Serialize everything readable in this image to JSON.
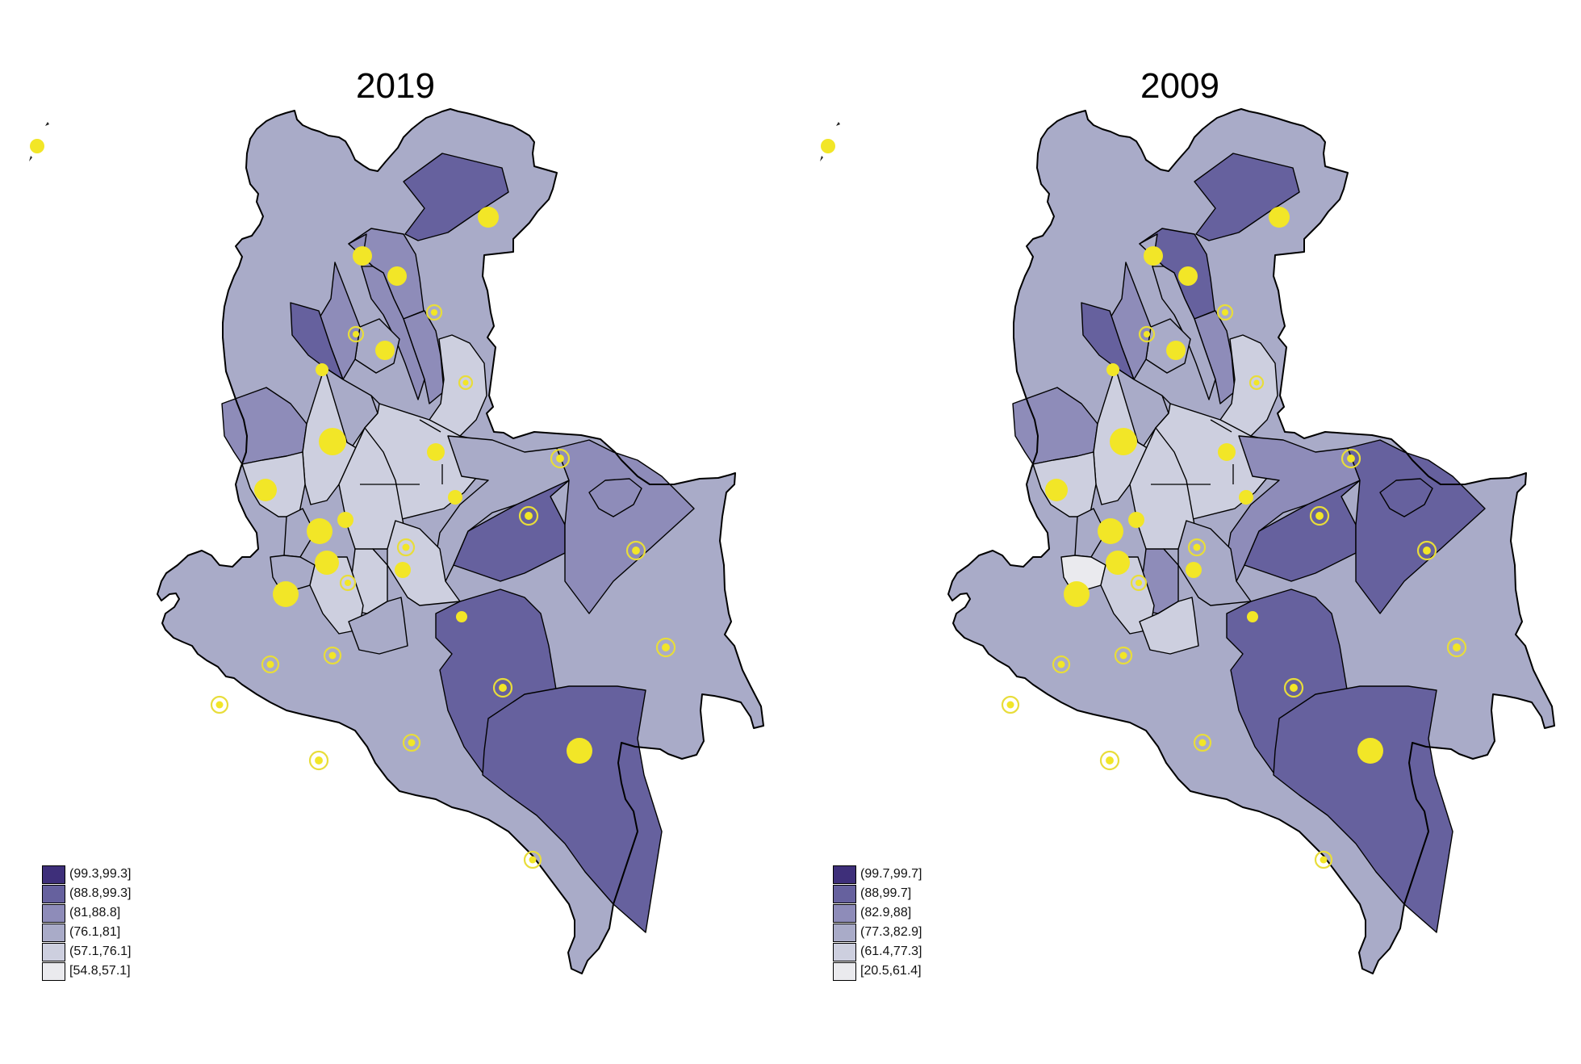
{
  "panels": [
    {
      "title": "2019",
      "legend": [
        {
          "label": "(99.3,99.3]",
          "color": "#3e2f7a"
        },
        {
          "label": "(88.8,99.3]",
          "color": "#66619e"
        },
        {
          "label": "(81,88.8]",
          "color": "#8e8cb9"
        },
        {
          "label": "(76.1,81]",
          "color": "#a9abc8"
        },
        {
          "label": "(57.1,76.1]",
          "color": "#cdcfdf"
        },
        {
          "label": "[54.8,57.1]",
          "color": "#eaeaee"
        }
      ],
      "region_classes": [
        1,
        2,
        2,
        2,
        3,
        2,
        1,
        3,
        4,
        4,
        2,
        4,
        4,
        3,
        3,
        4,
        4,
        4,
        3,
        3,
        1,
        2,
        2,
        4,
        1,
        1
      ]
    },
    {
      "title": "2009",
      "legend": [
        {
          "label": "(99.7,99.7]",
          "color": "#3e2f7a"
        },
        {
          "label": "(88,99.7]",
          "color": "#66619e"
        },
        {
          "label": "(82.9,88]",
          "color": "#8e8cb9"
        },
        {
          "label": "(77.3,82.9]",
          "color": "#a9abc8"
        },
        {
          "label": "(61.4,77.3]",
          "color": "#cdcfdf"
        },
        {
          "label": "[20.5,61.4]",
          "color": "#eaeaee"
        }
      ],
      "region_classes": [
        1,
        1,
        2,
        3,
        3,
        2,
        1,
        3,
        4,
        4,
        2,
        4,
        4,
        3,
        5,
        4,
        2,
        4,
        4,
        2,
        1,
        1,
        1,
        3,
        1,
        1
      ]
    }
  ],
  "colors": {
    "marker_fill": "#f2e627",
    "marker_ring": "#e8dd3a",
    "border": "#000000"
  }
}
